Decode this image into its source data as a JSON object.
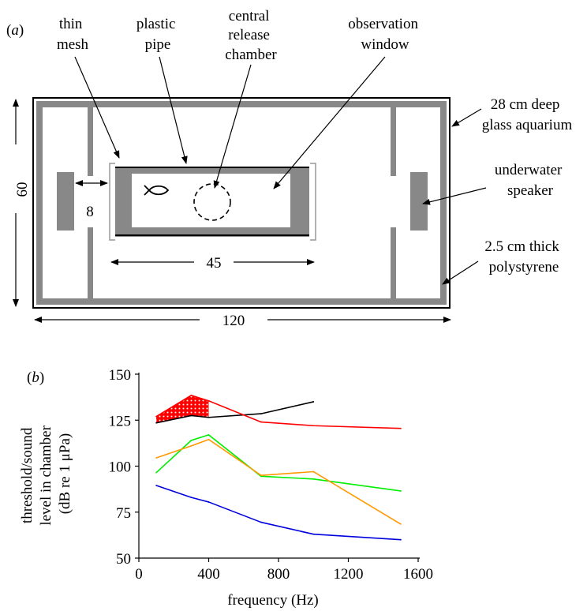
{
  "panel_a": {
    "panel_label_letter": "a",
    "labels": {
      "thin_mesh": [
        "thin",
        "mesh"
      ],
      "plastic_pipe": [
        "plastic",
        "pipe"
      ],
      "central_release_chamber": [
        "central",
        "release",
        "chamber"
      ],
      "observation_window": [
        "observation",
        "window"
      ],
      "aquarium": [
        "28 cm deep",
        "glass aquarium"
      ],
      "speaker": [
        "underwater",
        "speaker"
      ],
      "polystyrene": [
        "2.5 cm thick",
        "polystyrene"
      ]
    },
    "dimensions": {
      "height": "60",
      "speaker_gap": "8",
      "pipe_length": "45",
      "tank_length": "120"
    },
    "colors": {
      "frame": "#888888",
      "outline": "#000000",
      "bracket": "#999999"
    },
    "icons": [
      "fish-icon"
    ]
  },
  "panel_b": {
    "panel_label_letter": "b",
    "xlabel": "frequency (Hz)",
    "ylabel_lines": [
      "threshold/sound",
      "level in chamber",
      "(dB re 1 μPa)"
    ]
  },
  "chart_data": {
    "type": "line",
    "xlabel": "frequency (Hz)",
    "ylabel": "threshold/sound level in chamber (dB re 1 μPa)",
    "xlim": [
      0,
      1600
    ],
    "ylim": [
      50,
      150
    ],
    "xticks": [
      0,
      400,
      800,
      1200,
      1600
    ],
    "yticks": [
      50,
      75,
      100,
      125,
      150
    ],
    "grid": false,
    "legend": "none",
    "series": [
      {
        "color": "#000000",
        "x": [
          100,
          300,
          400,
          700,
          1000
        ],
        "y": [
          123.5,
          127.5,
          126.5,
          128.5,
          135
        ]
      },
      {
        "color": "#ff0000",
        "x": [
          100,
          300,
          400,
          700,
          1000,
          1500
        ],
        "y": [
          127,
          138.5,
          135.5,
          124,
          122,
          120.5
        ]
      },
      {
        "color": "#00ee00",
        "x": [
          100,
          300,
          400,
          700,
          1000,
          1500
        ],
        "y": [
          96.5,
          114,
          117,
          94.5,
          93,
          86.5
        ]
      },
      {
        "color": "#ff9900",
        "x": [
          100,
          300,
          400,
          700,
          1000,
          1500
        ],
        "y": [
          104.5,
          111,
          114.5,
          95,
          97,
          68.5
        ]
      },
      {
        "color": "#0000dd",
        "x": [
          100,
          300,
          400,
          700,
          1000,
          1500
        ],
        "y": [
          89.5,
          83,
          80.5,
          69.5,
          63,
          60
        ]
      }
    ],
    "shaded_region": {
      "fill": "#ff0000",
      "x": [
        100,
        300,
        400
      ],
      "lower": [
        123.5,
        127.5,
        126.5
      ],
      "upper": [
        127,
        138.5,
        135.5
      ]
    }
  }
}
